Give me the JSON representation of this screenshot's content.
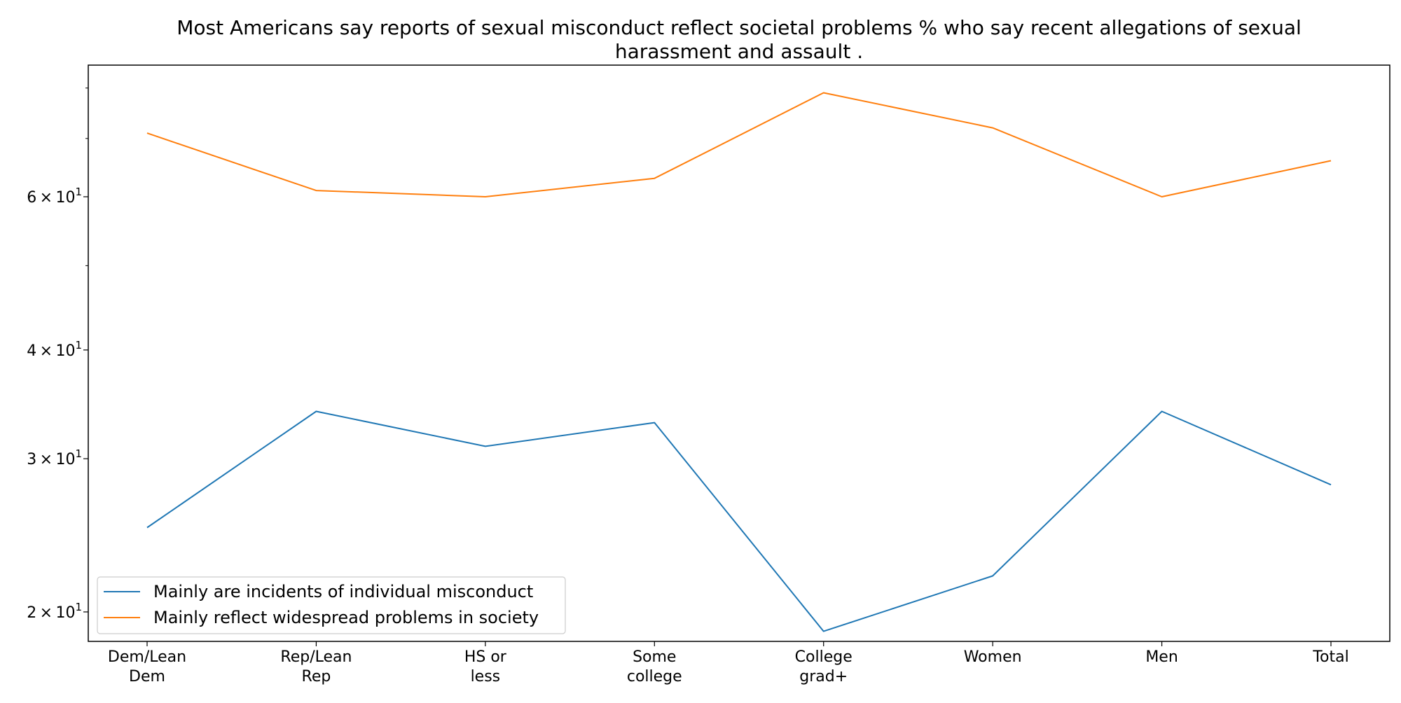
{
  "chart_data": {
    "type": "line",
    "title_lines": [
      "Most Americans say reports of sexual misconduct reflect societal problems % who say recent allegations of sexual",
      "harassment and assault ."
    ],
    "xlabel": "",
    "ylabel": "",
    "y_scale": "log",
    "ylim": [
      18.5,
      85
    ],
    "y_ticks": [
      {
        "value": 20,
        "mantissa": "2",
        "base": "10",
        "exp": "1"
      },
      {
        "value": 30,
        "mantissa": "3",
        "base": "10",
        "exp": "1"
      },
      {
        "value": 40,
        "mantissa": "4",
        "base": "10",
        "exp": "1"
      },
      {
        "value": 60,
        "mantissa": "6",
        "base": "10",
        "exp": "1"
      }
    ],
    "y_minor_ticks": [
      50,
      70,
      80
    ],
    "categories": [
      [
        "Dem/Lean",
        "Dem"
      ],
      [
        "Rep/Lean",
        "Rep"
      ],
      [
        "HS or",
        "less"
      ],
      [
        "Some",
        "college"
      ],
      [
        "College",
        "grad+"
      ],
      [
        "Women"
      ],
      [
        "Men"
      ],
      [
        "Total"
      ]
    ],
    "series": [
      {
        "name": "Mainly are incidents of individual misconduct",
        "color": "#1f77b4",
        "values": [
          25,
          34,
          31,
          33,
          19,
          22,
          34,
          28
        ]
      },
      {
        "name": "Mainly reflect widespread problems in society",
        "color": "#ff7f0e",
        "values": [
          71,
          61,
          60,
          63,
          79,
          72,
          60,
          66
        ]
      }
    ],
    "legend_position": "lower-left",
    "grid": false
  }
}
